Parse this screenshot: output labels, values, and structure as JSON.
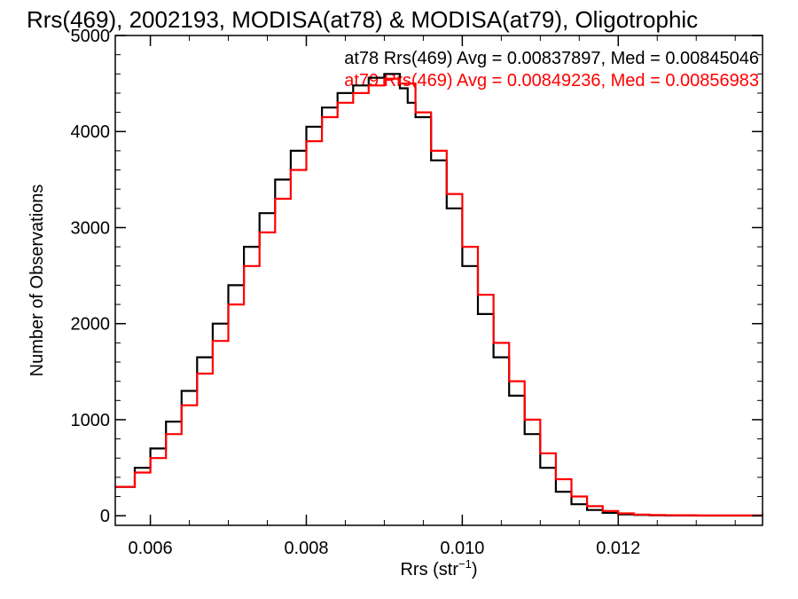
{
  "chart_data": {
    "type": "line",
    "title": "Rrs(469), 2002193, MODISA(at78) & MODISA(at79), Oligotrophic",
    "xlabel": "Rrs (str",
    "xlabel_sup": "−1",
    "xlabel_end": ")",
    "ylabel": "Number of Observations",
    "xlim": [
      0.00555,
      0.01385
    ],
    "ylim": [
      -100,
      5000
    ],
    "x_ticks": [
      0.006,
      0.008,
      0.01,
      0.012
    ],
    "x_tick_labels": [
      "0.006",
      "0.008",
      "0.010",
      "0.012"
    ],
    "y_ticks": [
      0,
      1000,
      2000,
      3000,
      4000,
      5000
    ],
    "y_tick_labels": [
      "0",
      "1000",
      "2000",
      "3000",
      "4000",
      "5000"
    ],
    "annotations": [
      {
        "text": "at78 Rrs(469) Avg = 0.00837897, Med = 0.00845046",
        "color": "#000000"
      },
      {
        "text": "at79 Rrs(469) Avg = 0.00849236, Med = 0.00856983",
        "color": "#ff0000"
      }
    ],
    "series": [
      {
        "color": "#000000",
        "x": [
          0.00555,
          0.0058,
          0.006,
          0.0062,
          0.0064,
          0.0066,
          0.0068,
          0.007,
          0.0072,
          0.0074,
          0.0076,
          0.0078,
          0.008,
          0.0082,
          0.0084,
          0.0086,
          0.0088,
          0.009,
          0.0092,
          0.0093,
          0.0094,
          0.0096,
          0.0098,
          0.01,
          0.0102,
          0.0104,
          0.0106,
          0.0108,
          0.011,
          0.0112,
          0.0114,
          0.0116,
          0.0118,
          0.012,
          0.0122,
          0.0124,
          0.0126,
          0.013,
          0.01385
        ],
        "y": [
          300,
          500,
          700,
          980,
          1300,
          1650,
          2000,
          2400,
          2800,
          3150,
          3500,
          3800,
          4050,
          4250,
          4400,
          4480,
          4560,
          4600,
          4450,
          4300,
          4150,
          3700,
          3200,
          2600,
          2100,
          1650,
          1250,
          850,
          500,
          250,
          120,
          60,
          30,
          15,
          8,
          5,
          3,
          2,
          1
        ]
      },
      {
        "color": "#ff0000",
        "x": [
          0.00555,
          0.0058,
          0.006,
          0.0062,
          0.0064,
          0.0066,
          0.0068,
          0.007,
          0.0072,
          0.0074,
          0.0076,
          0.0078,
          0.008,
          0.0082,
          0.0084,
          0.0086,
          0.0088,
          0.009,
          0.0092,
          0.0094,
          0.0096,
          0.0098,
          0.01,
          0.0102,
          0.0104,
          0.0106,
          0.0108,
          0.011,
          0.0112,
          0.0114,
          0.0116,
          0.0118,
          0.012,
          0.0122,
          0.0124,
          0.0126,
          0.013,
          0.01385
        ],
        "y": [
          300,
          450,
          600,
          850,
          1150,
          1480,
          1820,
          2200,
          2600,
          2950,
          3300,
          3600,
          3900,
          4150,
          4300,
          4400,
          4480,
          4550,
          4500,
          4200,
          3800,
          3350,
          2800,
          2300,
          1800,
          1400,
          1000,
          650,
          380,
          200,
          100,
          50,
          25,
          12,
          8,
          5,
          3,
          1
        ]
      }
    ]
  }
}
